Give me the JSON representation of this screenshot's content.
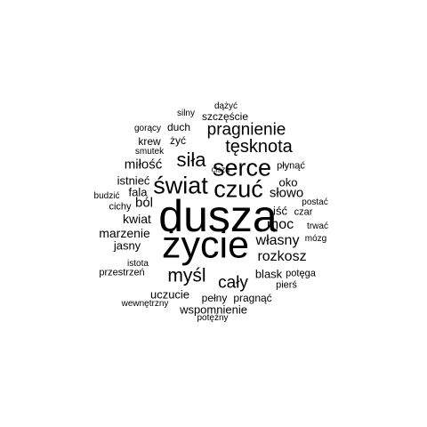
{
  "words": [
    "dusza",
    "życie",
    "serce",
    "czuć",
    "świat",
    "siła",
    "pragnienie",
    "tęsknota",
    "myśl",
    "cały",
    "rozkosz",
    "własny",
    "moc",
    "słowo",
    "oko",
    "miłość",
    "ból",
    "kwiat",
    "marzenie",
    "jasny",
    "uczucie",
    "pełny",
    "pragnąć",
    "wspomnienie",
    "blask",
    "potęga",
    "pierś",
    "szczęście",
    "dążyć",
    "silny",
    "duch",
    "gorący",
    "żyć",
    "krew",
    "smutek",
    "cisza",
    "płynąć",
    "istnieć",
    "fala",
    "budzić",
    "cichy",
    "postać",
    "iść",
    "czar",
    "trwać",
    "mózg",
    "istota",
    "przestrzeń",
    "wewnętrzny",
    "potężny"
  ],
  "colors": {
    "text": "#000000",
    "background": "#ffffff"
  }
}
